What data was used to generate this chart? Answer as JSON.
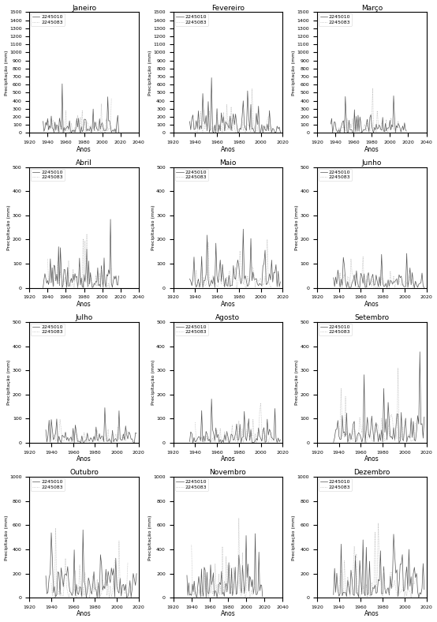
{
  "months": [
    "Janeiro",
    "Fevereiro",
    "Março",
    "Abril",
    "Maio",
    "Junho",
    "Julho",
    "Agosto",
    "Setembro",
    "Outubro",
    "Novembro",
    "Dezembro"
  ],
  "station1": "2245010",
  "station2": "2245083",
  "line1_color": "#555555",
  "line2_color": "#aaaaaa",
  "line2_style": "dotted",
  "ylabel": "Precipitação (mm)",
  "xlabel": "Anos",
  "ylims": {
    "Janeiro": [
      0,
      1500
    ],
    "Fevereiro": [
      0,
      1500
    ],
    "Março": [
      0,
      1500
    ],
    "Abril": [
      0,
      500
    ],
    "Maio": [
      0,
      500
    ],
    "Junho": [
      0,
      500
    ],
    "Julho": [
      0,
      500
    ],
    "Agosto": [
      0,
      500
    ],
    "Setembro": [
      0,
      500
    ],
    "Outubro": [
      0,
      1000
    ],
    "Novembro": [
      0,
      1000
    ],
    "Dezembro": [
      0,
      1000
    ]
  },
  "yticks": {
    "Janeiro": [
      0,
      100,
      200,
      300,
      400,
      500,
      600,
      700,
      800,
      900,
      1000,
      1100,
      1200,
      1300,
      1400,
      1500
    ],
    "Fevereiro": [
      0,
      100,
      200,
      300,
      400,
      500,
      600,
      700,
      800,
      900,
      1000,
      1100,
      1200,
      1300,
      1400,
      1500
    ],
    "Março": [
      0,
      100,
      200,
      300,
      400,
      500,
      600,
      700,
      800,
      900,
      1000,
      1100,
      1200,
      1300,
      1400,
      1500
    ],
    "Abril": [
      0,
      100,
      200,
      300,
      400,
      500
    ],
    "Maio": [
      0,
      100,
      200,
      300,
      400,
      500
    ],
    "Junho": [
      0,
      100,
      200,
      300,
      400,
      500
    ],
    "Julho": [
      0,
      100,
      200,
      300,
      400,
      500
    ],
    "Agosto": [
      0,
      100,
      200,
      300,
      400,
      500
    ],
    "Setembro": [
      0,
      100,
      200,
      300,
      400,
      500
    ],
    "Outubro": [
      0,
      200,
      400,
      600,
      800,
      1000
    ],
    "Novembro": [
      0,
      200,
      400,
      600,
      800,
      1000
    ],
    "Dezembro": [
      0,
      200,
      400,
      600,
      800,
      1000
    ]
  },
  "month_xlims": {
    "Janeiro": [
      [
        1920,
        2040
      ],
      [
        1920,
        1940,
        1960,
        1980,
        2000,
        2020,
        2040
      ]
    ],
    "Fevereiro": [
      [
        1920,
        2020
      ],
      [
        1920,
        1940,
        1960,
        1980,
        2000,
        2020
      ]
    ],
    "Março": [
      [
        1920,
        2040
      ],
      [
        1920,
        1940,
        1960,
        1980,
        2000,
        2020,
        2040
      ]
    ],
    "Abril": [
      [
        1920,
        2040
      ],
      [
        1920,
        1940,
        1960,
        1980,
        2000,
        2020,
        2040
      ]
    ],
    "Maio": [
      [
        1920,
        2020
      ],
      [
        1920,
        1940,
        1960,
        1980,
        2000,
        2020
      ]
    ],
    "Junho": [
      [
        1920,
        2020
      ],
      [
        1920,
        1940,
        1960,
        1980,
        2000,
        2020
      ]
    ],
    "Julho": [
      [
        1920,
        2020
      ],
      [
        1920,
        1940,
        1960,
        1980,
        2000,
        2020
      ]
    ],
    "Agosto": [
      [
        1920,
        2020
      ],
      [
        1920,
        1940,
        1960,
        1980,
        2000,
        2020
      ]
    ],
    "Setembro": [
      [
        1920,
        2020
      ],
      [
        1920,
        1940,
        1960,
        1980,
        2000,
        2020
      ]
    ],
    "Outubro": [
      [
        1920,
        2020
      ],
      [
        1920,
        1940,
        1960,
        1980,
        2000,
        2020
      ]
    ],
    "Novembro": [
      [
        1920,
        2040
      ],
      [
        1920,
        1940,
        1960,
        1980,
        2000,
        2020,
        2040
      ]
    ],
    "Dezembro": [
      [
        1920,
        2020
      ],
      [
        1920,
        1940,
        1960,
        1980,
        2000,
        2020
      ]
    ]
  },
  "month_scales": {
    "Janeiro": [
      120,
      100
    ],
    "Fevereiro": [
      130,
      110
    ],
    "Março": [
      110,
      90
    ],
    "Abril": [
      55,
      45
    ],
    "Maio": [
      55,
      45
    ],
    "Junho": [
      35,
      30
    ],
    "Julho": [
      30,
      25
    ],
    "Agosto": [
      35,
      30
    ],
    "Setembro": [
      60,
      50
    ],
    "Outubro": [
      150,
      130
    ],
    "Novembro": [
      160,
      140
    ],
    "Dezembro": [
      150,
      130
    ]
  },
  "background": "#ffffff"
}
